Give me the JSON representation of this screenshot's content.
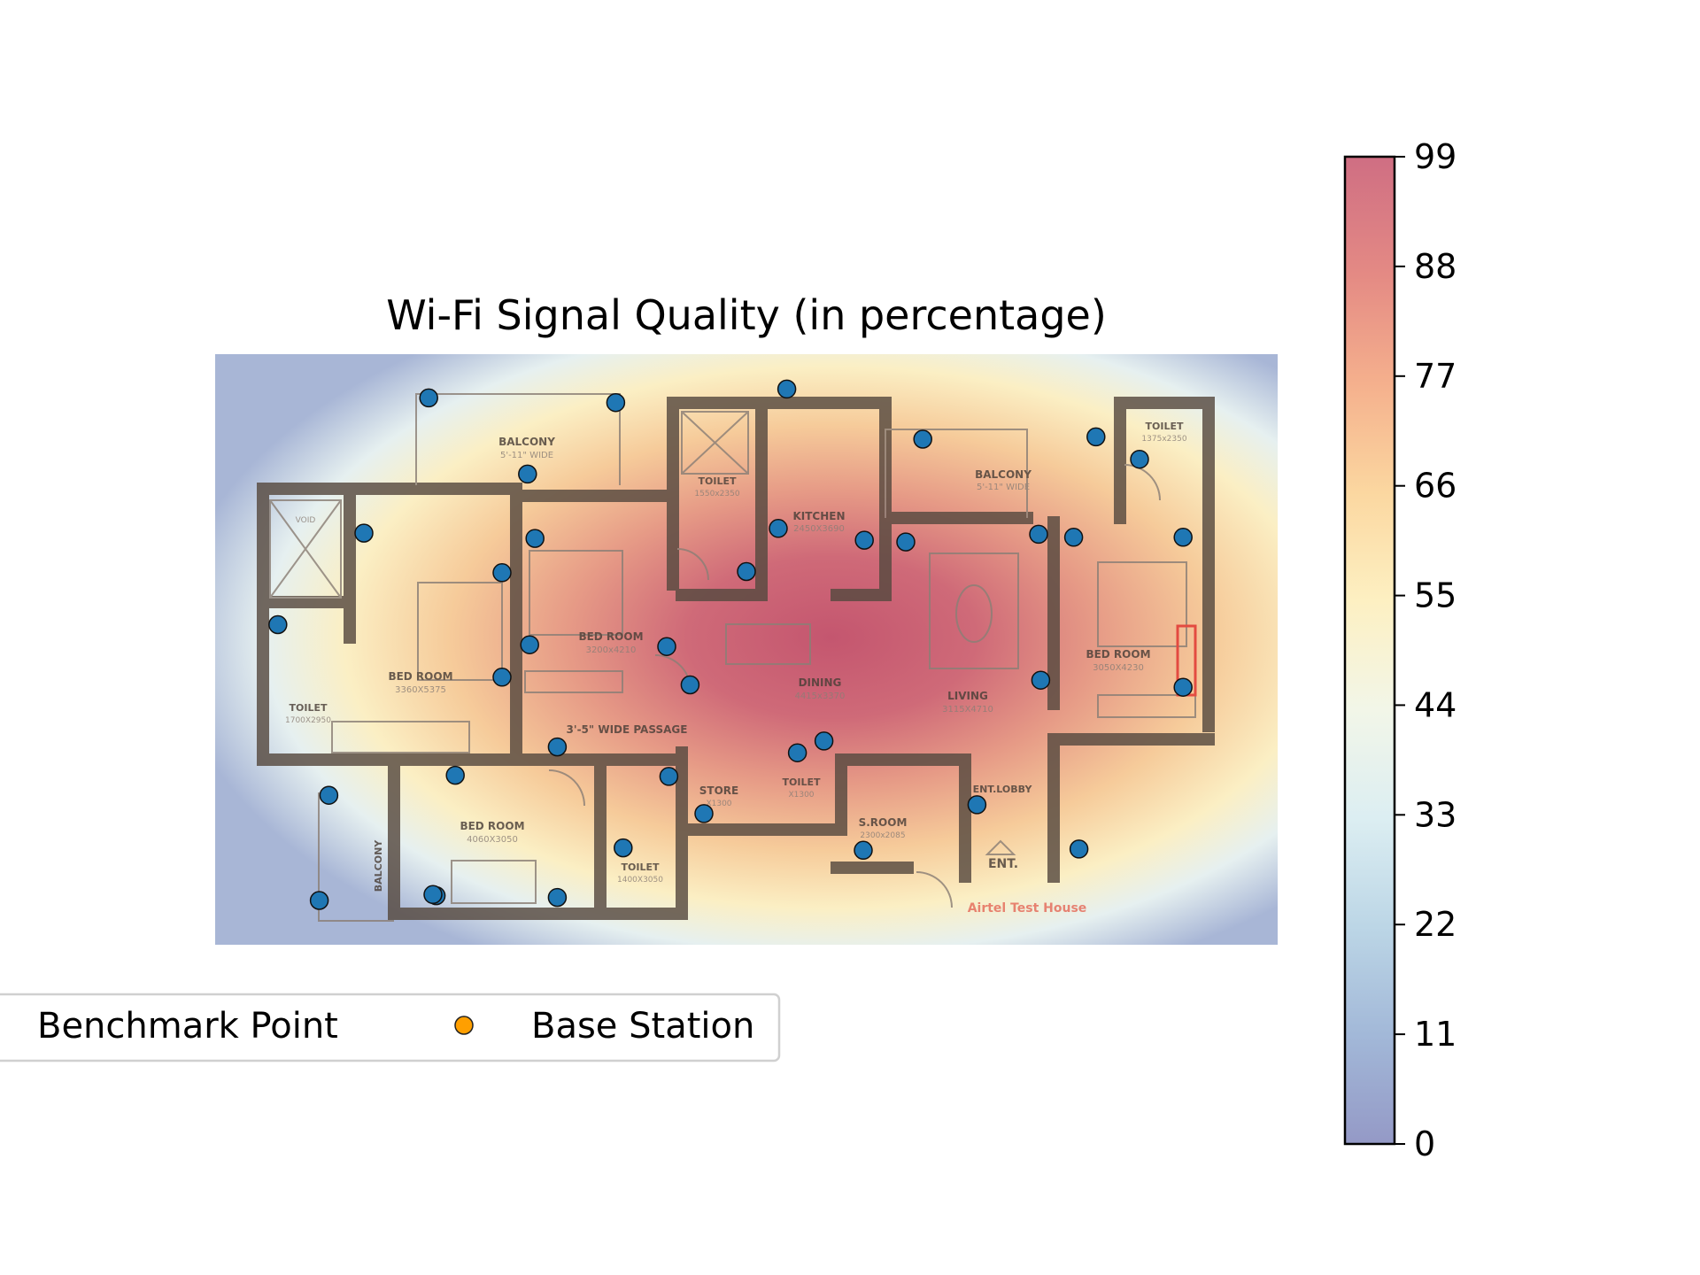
{
  "chart_data": {
    "type": "heatmap",
    "title": "Wi-Fi Signal Quality (in percentage)",
    "colorbar": {
      "ticks": [
        0,
        11,
        22,
        33,
        44,
        55,
        66,
        77,
        88,
        99
      ],
      "range": [
        0,
        99
      ],
      "colormap": "RdYlBu_r",
      "alpha": 0.5
    },
    "legend": {
      "placement": "lower-left",
      "entries": [
        {
          "label": "Benchmark Point",
          "color": "#1f77b4"
        },
        {
          "label": "Base Station",
          "color": "#ff9f00"
        }
      ]
    },
    "image_extent": {
      "x": [
        0,
        1
      ],
      "y": [
        0,
        1
      ]
    },
    "heat_peak_region": "center-right (dining / living / bed room)",
    "points": [
      {
        "x": 0.201,
        "y": 0.926
      },
      {
        "x": 0.377,
        "y": 0.918
      },
      {
        "x": 0.538,
        "y": 0.941
      },
      {
        "x": 0.666,
        "y": 0.856
      },
      {
        "x": 0.829,
        "y": 0.86
      },
      {
        "x": 0.87,
        "y": 0.822
      },
      {
        "x": 0.294,
        "y": 0.797
      },
      {
        "x": 0.14,
        "y": 0.697
      },
      {
        "x": 0.301,
        "y": 0.688
      },
      {
        "x": 0.27,
        "y": 0.63
      },
      {
        "x": 0.53,
        "y": 0.705
      },
      {
        "x": 0.611,
        "y": 0.685
      },
      {
        "x": 0.65,
        "y": 0.682
      },
      {
        "x": 0.775,
        "y": 0.695
      },
      {
        "x": 0.808,
        "y": 0.69
      },
      {
        "x": 0.911,
        "y": 0.69
      },
      {
        "x": 0.5,
        "y": 0.632
      },
      {
        "x": 0.059,
        "y": 0.542
      },
      {
        "x": 0.296,
        "y": 0.508
      },
      {
        "x": 0.27,
        "y": 0.453
      },
      {
        "x": 0.425,
        "y": 0.505
      },
      {
        "x": 0.447,
        "y": 0.44
      },
      {
        "x": 0.777,
        "y": 0.448
      },
      {
        "x": 0.911,
        "y": 0.436
      },
      {
        "x": 0.573,
        "y": 0.345
      },
      {
        "x": 0.322,
        "y": 0.335
      },
      {
        "x": 0.548,
        "y": 0.325
      },
      {
        "x": 0.427,
        "y": 0.285
      },
      {
        "x": 0.717,
        "y": 0.237
      },
      {
        "x": 0.107,
        "y": 0.253
      },
      {
        "x": 0.226,
        "y": 0.287
      },
      {
        "x": 0.46,
        "y": 0.222
      },
      {
        "x": 0.384,
        "y": 0.164
      },
      {
        "x": 0.61,
        "y": 0.16
      },
      {
        "x": 0.813,
        "y": 0.162
      },
      {
        "x": 0.208,
        "y": 0.083
      },
      {
        "x": 0.322,
        "y": 0.08
      },
      {
        "x": 0.098,
        "y": 0.075
      },
      {
        "x": 0.205,
        "y": 0.085
      }
    ]
  },
  "floorplan": {
    "rooms": [
      {
        "name": "BALCONY",
        "dims": "5'-11\" WIDE"
      },
      {
        "name": "TOILET",
        "dims": "1550x2350"
      },
      {
        "name": "KITCHEN",
        "dims": "2450X3690"
      },
      {
        "name": "BALCONY",
        "dims": "5'-11\" WIDE"
      },
      {
        "name": "TOILET",
        "dims": "1375x2350"
      },
      {
        "name": "VOID",
        "dims": ""
      },
      {
        "name": "BED ROOM",
        "dims": "3200x4210"
      },
      {
        "name": "BED ROOM",
        "dims": "3360X5375"
      },
      {
        "name": "TOILET",
        "dims": "1700X2950"
      },
      {
        "name": "DINING",
        "dims": "4415x3370"
      },
      {
        "name": "LIVING",
        "dims": "3115X4710"
      },
      {
        "name": "BED ROOM",
        "dims": "3050X4230"
      },
      {
        "name": "3'-5\" WIDE PASSAGE",
        "dims": ""
      },
      {
        "name": "STORE",
        "dims": "X1300"
      },
      {
        "name": "TOILET",
        "dims": "X1300"
      },
      {
        "name": "S.ROOM",
        "dims": "2300x2085"
      },
      {
        "name": "ENT.LOBBY",
        "dims": ""
      },
      {
        "name": "BED ROOM",
        "dims": "4060X3050"
      },
      {
        "name": "TOILET",
        "dims": "1400X3050"
      },
      {
        "name": "BALCONY",
        "dims": ""
      },
      {
        "name": "ENT.",
        "dims": ""
      }
    ],
    "credit": "Airtel Test House"
  }
}
